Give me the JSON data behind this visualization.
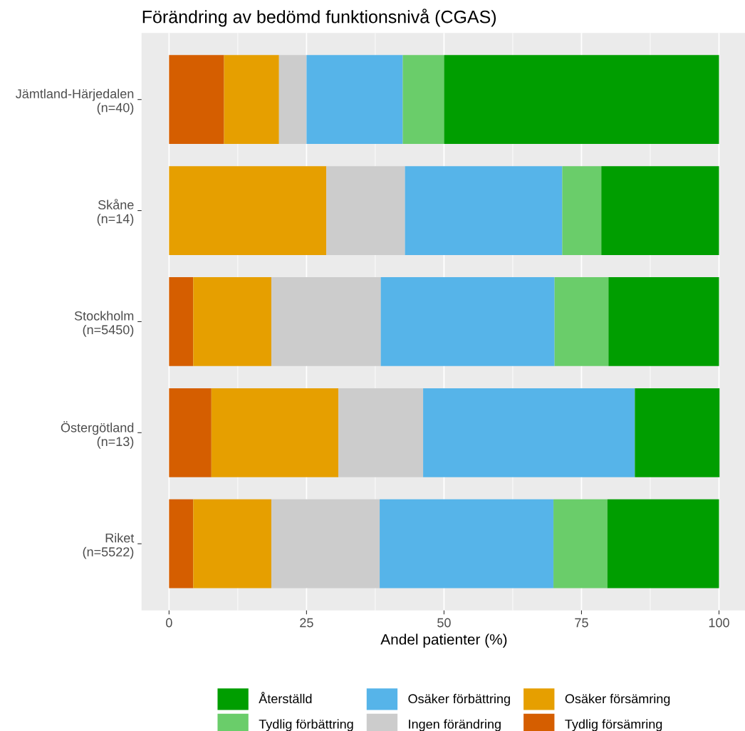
{
  "chart_data": {
    "type": "bar",
    "orientation": "horizontal",
    "stacked": true,
    "title": "Förändring av bedömd funktionsnivå (CGAS)",
    "xlabel": "Andel patienter (%)",
    "categories": [
      "Jämtland-Härjedalen\n(n=40)",
      "Skåne\n(n=14)",
      "Stockholm\n(n=5450)",
      "Östergötland\n(n=13)",
      "Riket\n(n=5522)"
    ],
    "series": [
      {
        "name": "Tydlig försämring",
        "color": "#d55e00",
        "values": [
          10,
          0,
          4.4,
          7.7,
          4.4
        ]
      },
      {
        "name": "Osäker försämring",
        "color": "#e69f00",
        "values": [
          10,
          28.6,
          14.2,
          23.1,
          14.2
        ]
      },
      {
        "name": "Ingen förändring",
        "color": "#cccccc",
        "values": [
          5,
          14.3,
          19.9,
          15.4,
          19.7
        ]
      },
      {
        "name": "Osäker förbättring",
        "color": "#56b4e9",
        "values": [
          17.5,
          28.6,
          31.6,
          38.5,
          31.6
        ]
      },
      {
        "name": "Tydlig förbättring",
        "color": "#6acd6a",
        "values": [
          7.5,
          7.1,
          9.8,
          0,
          9.8
        ]
      },
      {
        "name": "Återställd",
        "color": "#009e00",
        "values": [
          50,
          21.4,
          20.1,
          15.4,
          20.3
        ]
      }
    ],
    "xlim": [
      -5,
      105
    ],
    "xticks": [
      0,
      25,
      50,
      75,
      100
    ],
    "grid": "x",
    "legend": "bottom"
  }
}
